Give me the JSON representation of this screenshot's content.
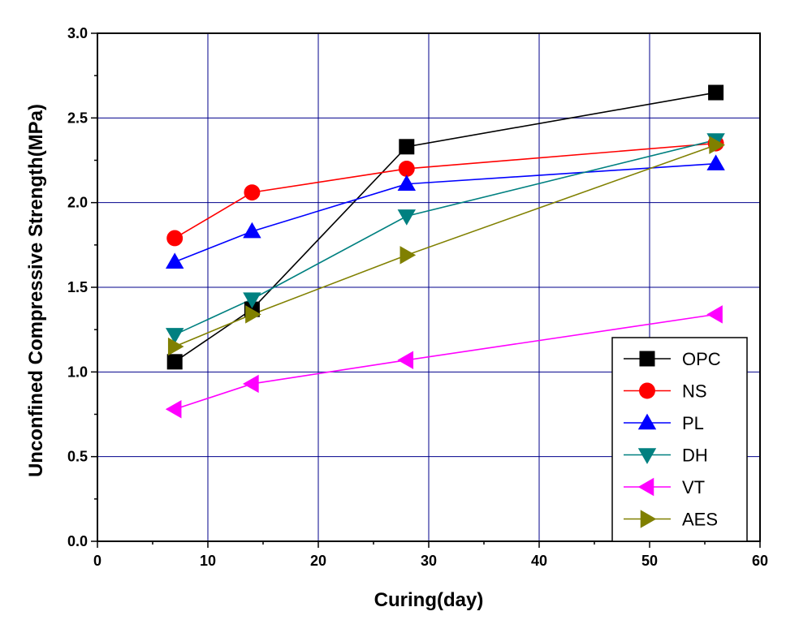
{
  "chart_data": {
    "type": "line",
    "title": "",
    "xlabel": "Curing(day)",
    "ylabel": "Unconfined Compressive Strength(MPa)",
    "xlim": [
      0,
      60
    ],
    "ylim": [
      0.0,
      3.0
    ],
    "xticks": [
      "0",
      "10",
      "20",
      "30",
      "40",
      "50",
      "60"
    ],
    "yticks": [
      "0.0",
      "0.5",
      "1.0",
      "1.5",
      "2.0",
      "2.5",
      "3.0"
    ],
    "grid": true,
    "legend_position": "bottom-right",
    "x": [
      7,
      14,
      28,
      56
    ],
    "series": [
      {
        "name": "OPC",
        "values": [
          1.06,
          1.37,
          2.33,
          2.65
        ],
        "color": "#000000",
        "marker": "square"
      },
      {
        "name": "NS",
        "values": [
          1.79,
          2.06,
          2.2,
          2.35
        ],
        "color": "#ff0000",
        "marker": "circle"
      },
      {
        "name": "PL",
        "values": [
          1.65,
          1.83,
          2.11,
          2.23
        ],
        "color": "#0000ff",
        "marker": "triangle-up"
      },
      {
        "name": "DH",
        "values": [
          1.22,
          1.43,
          1.92,
          2.37
        ],
        "color": "#008080",
        "marker": "triangle-down"
      },
      {
        "name": "VT",
        "values": [
          0.78,
          0.93,
          1.07,
          1.34
        ],
        "color": "#ff00ff",
        "marker": "triangle-left"
      },
      {
        "name": "AES",
        "values": [
          1.15,
          1.34,
          1.69,
          2.34
        ],
        "color": "#808000",
        "marker": "triangle-right"
      }
    ]
  }
}
